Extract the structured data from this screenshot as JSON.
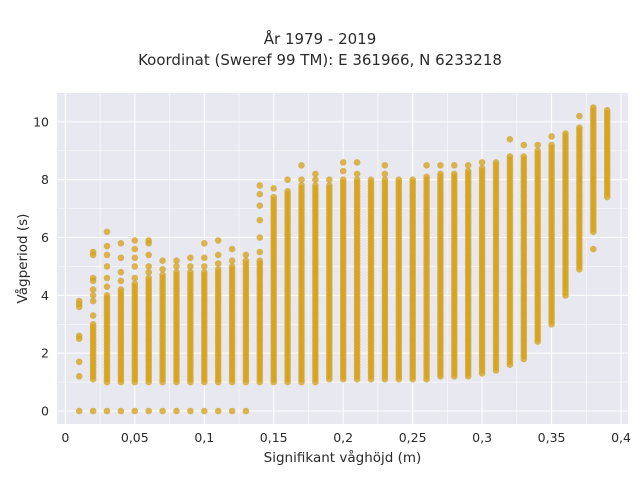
{
  "chart_data": {
    "type": "scatter",
    "title": "År 1979 - 2019",
    "subtitle": "Koordinat (Sweref 99 TM): E 361966, N 6233218",
    "xlabel": "Signifikant våghöjd (m)",
    "ylabel": "Vågperiod (s)",
    "xlim": [
      -0.006,
      0.405
    ],
    "ylim": [
      -0.45,
      11.0
    ],
    "x_ticks": [
      0,
      0.05,
      0.1,
      0.15,
      0.2,
      0.25,
      0.3,
      0.35,
      0.4
    ],
    "x_tick_labels": [
      "0",
      "0,05",
      "0,1",
      "0,15",
      "0,2",
      "0,25",
      "0,3",
      "0,35",
      "0,4"
    ],
    "y_ticks": [
      0,
      2,
      4,
      6,
      8,
      10
    ],
    "y_tick_labels": [
      "0",
      "2",
      "4",
      "6",
      "8",
      "10"
    ],
    "grid": true,
    "colors": {
      "marker": "#D4A017",
      "background": "#E8E8F0",
      "grid": "#FFFFFF"
    },
    "marker_opacity": 0.75,
    "columns": [
      {
        "x": 0.01,
        "segments": [
          [
            1.2,
            1.2
          ],
          [
            1.7,
            1.7
          ],
          [
            2.5,
            2.6
          ],
          [
            3.6,
            3.8
          ]
        ],
        "zero": true
      },
      {
        "x": 0.02,
        "segments": [
          [
            1.1,
            3.0
          ]
        ],
        "outliers": [
          3.3,
          3.8,
          4.0,
          4.2,
          4.5,
          4.6,
          5.4,
          5.5
        ],
        "zero": true
      },
      {
        "x": 0.03,
        "segments": [
          [
            1.0,
            4.0
          ]
        ],
        "outliers": [
          4.3,
          4.6,
          5.0,
          5.4,
          5.7,
          6.2
        ],
        "zero": true
      },
      {
        "x": 0.04,
        "segments": [
          [
            1.0,
            4.2
          ]
        ],
        "outliers": [
          4.5,
          4.8,
          5.3,
          5.8
        ],
        "zero": true
      },
      {
        "x": 0.05,
        "segments": [
          [
            1.0,
            4.4
          ]
        ],
        "outliers": [
          4.6,
          5.0,
          5.3,
          5.6,
          5.9
        ],
        "zero": true
      },
      {
        "x": 0.06,
        "segments": [
          [
            1.0,
            4.6
          ]
        ],
        "outliers": [
          4.8,
          5.0,
          5.4,
          5.8,
          5.9
        ],
        "zero": true
      },
      {
        "x": 0.07,
        "segments": [
          [
            1.0,
            4.7
          ]
        ],
        "outliers": [
          4.9,
          5.2
        ],
        "zero": true
      },
      {
        "x": 0.08,
        "segments": [
          [
            1.0,
            4.8
          ]
        ],
        "outliers": [
          5.0,
          5.2
        ],
        "zero": true
      },
      {
        "x": 0.09,
        "segments": [
          [
            1.0,
            4.8
          ]
        ],
        "outliers": [
          5.0,
          5.3
        ],
        "zero": true
      },
      {
        "x": 0.1,
        "segments": [
          [
            1.0,
            4.8
          ]
        ],
        "outliers": [
          5.0,
          5.3,
          5.8
        ],
        "zero": true
      },
      {
        "x": 0.11,
        "segments": [
          [
            1.0,
            4.9
          ]
        ],
        "outliers": [
          5.1,
          5.4,
          5.9
        ],
        "zero": true
      },
      {
        "x": 0.12,
        "segments": [
          [
            1.0,
            5.0
          ]
        ],
        "outliers": [
          5.2,
          5.6
        ],
        "zero": true
      },
      {
        "x": 0.13,
        "segments": [
          [
            1.0,
            5.2
          ]
        ],
        "outliers": [
          5.4
        ],
        "zero": true
      },
      {
        "x": 0.14,
        "segments": [
          [
            1.0,
            5.2
          ]
        ],
        "outliers": [
          5.5,
          6.0,
          6.6,
          7.1,
          7.5,
          7.8
        ],
        "zero": false
      },
      {
        "x": 0.15,
        "segments": [
          [
            1.0,
            7.4
          ]
        ],
        "outliers": [
          7.7
        ],
        "zero": false
      },
      {
        "x": 0.16,
        "segments": [
          [
            1.0,
            7.6
          ]
        ],
        "outliers": [
          8.0
        ],
        "zero": false
      },
      {
        "x": 0.17,
        "segments": [
          [
            1.0,
            7.8
          ]
        ],
        "outliers": [
          8.0,
          8.5
        ],
        "zero": false
      },
      {
        "x": 0.18,
        "segments": [
          [
            1.0,
            7.8
          ]
        ],
        "outliers": [
          8.0,
          8.2
        ],
        "zero": false
      },
      {
        "x": 0.19,
        "segments": [
          [
            1.1,
            7.8
          ]
        ],
        "outliers": [
          8.0
        ],
        "zero": false
      },
      {
        "x": 0.2,
        "segments": [
          [
            1.1,
            8.0
          ]
        ],
        "outliers": [
          8.3,
          8.6
        ],
        "zero": false
      },
      {
        "x": 0.21,
        "segments": [
          [
            1.1,
            8.0
          ]
        ],
        "outliers": [
          8.2,
          8.6
        ],
        "zero": false
      },
      {
        "x": 0.22,
        "segments": [
          [
            1.1,
            7.9
          ]
        ],
        "outliers": [
          8.0
        ],
        "zero": false
      },
      {
        "x": 0.23,
        "segments": [
          [
            1.1,
            8.0
          ]
        ],
        "outliers": [
          8.2,
          8.5
        ],
        "zero": false
      },
      {
        "x": 0.24,
        "segments": [
          [
            1.1,
            8.0
          ]
        ],
        "outliers": [],
        "zero": false
      },
      {
        "x": 0.25,
        "segments": [
          [
            1.1,
            8.0
          ]
        ],
        "outliers": [],
        "zero": false
      },
      {
        "x": 0.26,
        "segments": [
          [
            1.1,
            8.1
          ]
        ],
        "outliers": [
          8.5
        ],
        "zero": false
      },
      {
        "x": 0.27,
        "segments": [
          [
            1.2,
            8.2
          ]
        ],
        "outliers": [
          8.5
        ],
        "zero": false
      },
      {
        "x": 0.28,
        "segments": [
          [
            1.2,
            8.2
          ]
        ],
        "outliers": [
          8.5
        ],
        "zero": false
      },
      {
        "x": 0.29,
        "segments": [
          [
            1.2,
            8.3
          ]
        ],
        "outliers": [
          8.5
        ],
        "zero": false
      },
      {
        "x": 0.3,
        "segments": [
          [
            1.3,
            8.4
          ]
        ],
        "outliers": [
          8.6
        ],
        "zero": false
      },
      {
        "x": 0.31,
        "segments": [
          [
            1.4,
            8.6
          ]
        ],
        "outliers": [],
        "zero": false
      },
      {
        "x": 0.32,
        "segments": [
          [
            1.6,
            8.8
          ]
        ],
        "outliers": [
          9.4
        ],
        "zero": false
      },
      {
        "x": 0.33,
        "segments": [
          [
            1.8,
            8.8
          ]
        ],
        "outliers": [
          9.2
        ],
        "zero": false
      },
      {
        "x": 0.34,
        "segments": [
          [
            2.4,
            9.0
          ]
        ],
        "outliers": [
          9.2
        ],
        "zero": false
      },
      {
        "x": 0.35,
        "segments": [
          [
            3.0,
            9.2
          ]
        ],
        "outliers": [
          9.5
        ],
        "zero": false
      },
      {
        "x": 0.36,
        "segments": [
          [
            4.0,
            9.6
          ]
        ],
        "outliers": [],
        "zero": false
      },
      {
        "x": 0.37,
        "segments": [
          [
            5.0,
            9.8
          ]
        ],
        "outliers": [
          4.9,
          10.2
        ],
        "zero": false
      },
      {
        "x": 0.38,
        "segments": [
          [
            6.2,
            10.4
          ]
        ],
        "outliers": [
          5.6,
          10.5
        ],
        "zero": false
      },
      {
        "x": 0.39,
        "segments": [
          [
            7.4,
            10.3
          ]
        ],
        "outliers": [
          10.4
        ],
        "zero": false
      }
    ]
  }
}
